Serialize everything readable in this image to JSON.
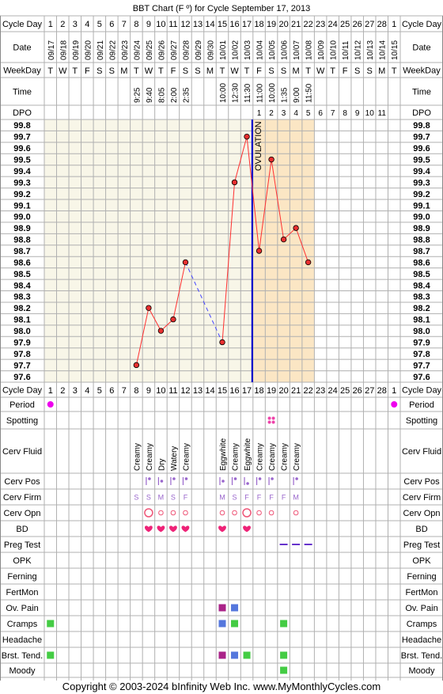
{
  "chart_data": {
    "type": "line",
    "title": "BBT Chart (F º) for Cycle September 17, 2013",
    "copyright": "Copyright © 2003-2024 bInfinity Web Inc.     www.MyMonthlyCycles.com",
    "headers": {
      "cycle_day": "Cycle Day",
      "date": "Date",
      "weekday": "WeekDay",
      "time": "Time",
      "dpo": "DPO"
    },
    "cycle_days": [
      "1",
      "2",
      "3",
      "4",
      "5",
      "6",
      "7",
      "8",
      "9",
      "10",
      "11",
      "12",
      "13",
      "14",
      "15",
      "16",
      "17",
      "18",
      "19",
      "20",
      "21",
      "22",
      "23",
      "24",
      "25",
      "26",
      "27",
      "28",
      "1"
    ],
    "dates": [
      "09/17",
      "09/18",
      "09/19",
      "09/20",
      "09/21",
      "09/22",
      "09/23",
      "09/24",
      "09/25",
      "09/26",
      "09/27",
      "09/28",
      "09/29",
      "09/30",
      "10/01",
      "10/02",
      "10/03",
      "10/04",
      "10/05",
      "10/06",
      "10/07",
      "10/08",
      "10/09",
      "10/10",
      "10/11",
      "10/12",
      "10/13",
      "10/14",
      "10/15"
    ],
    "weekdays": [
      "T",
      "W",
      "T",
      "F",
      "S",
      "S",
      "M",
      "T",
      "W",
      "T",
      "F",
      "S",
      "S",
      "M",
      "T",
      "W",
      "T",
      "F",
      "S",
      "S",
      "M",
      "T",
      "W",
      "T",
      "F",
      "S",
      "S",
      "M",
      "T"
    ],
    "times": [
      "",
      "",
      "",
      "",
      "",
      "",
      "",
      "9:25",
      "9:40",
      "8:05",
      "2:00",
      "2:35",
      "",
      "",
      "10:00",
      "12:30",
      "11:30",
      "11:00",
      "10:00",
      "1:35",
      "9:00",
      "11:50",
      "",
      "",
      "",
      "",
      "",
      "",
      ""
    ],
    "dpo": [
      "",
      "",
      "",
      "",
      "",
      "",
      "",
      "",
      "",
      "",
      "",
      "",
      "",
      "",
      "",
      "",
      "",
      "1",
      "2",
      "3",
      "4",
      "5",
      "6",
      "7",
      "8",
      "9",
      "10",
      "11",
      ""
    ],
    "y_ticks": [
      "99.8",
      "99.7",
      "99.6",
      "99.5",
      "99.4",
      "99.3",
      "99.2",
      "99.1",
      "99.0",
      "98.9",
      "98.8",
      "98.7",
      "98.6",
      "98.5",
      "98.4",
      "98.3",
      "98.2",
      "98.1",
      "98.0",
      "97.9",
      "97.8",
      "97.7",
      "97.6"
    ],
    "ylim": [
      97.6,
      99.8
    ],
    "temperatures": [
      null,
      null,
      null,
      null,
      null,
      null,
      null,
      97.7,
      98.2,
      98.0,
      98.1,
      98.6,
      null,
      null,
      97.9,
      99.3,
      99.7,
      98.7,
      99.5,
      98.8,
      98.9,
      98.6,
      null,
      null,
      null,
      null,
      null,
      null,
      null
    ],
    "dashed_gap": [
      12,
      15
    ],
    "coverline": null,
    "ovulation_day_index": 16,
    "ovulation_label": "OVULATION",
    "colors": {
      "pre_ovulation_bg": "#f8f6e8",
      "post_ovulation_bg": "#fbe6c4",
      "temp_line": "#ff3030",
      "point_fill": "#e83030",
      "ovulation_line": "#0000cc",
      "grid": "#b0b0b0",
      "heart": "#ee2277",
      "period": "#ee00ee",
      "magenta_box": "#aa2288",
      "blue_box": "#5577dd",
      "green_box": "#44cc44",
      "purple": "#9966cc",
      "preg_line": "#6633cc"
    },
    "rows": [
      {
        "label": "Period",
        "type": "dot",
        "cells": {
          "0": "period",
          "28": "period"
        }
      },
      {
        "label": "Spotting",
        "type": "dots4",
        "cells": {
          "18": "spot"
        }
      },
      {
        "label": "Cerv Fluid",
        "type": "vtext",
        "cells": {
          "7": "Creamy",
          "8": "Creamy",
          "9": "Dry",
          "10": "Watery",
          "11": "Creamy",
          "14": "Eggwhite",
          "15": "Creamy",
          "16": "Eggwhite",
          "17": "Creamy",
          "18": "Creamy",
          "19": "Creamy",
          "20": "Creamy"
        }
      },
      {
        "label": "Cerv Pos",
        "type": "pos",
        "cells": {
          "8": "high",
          "9": "mid",
          "10": "high",
          "11": "high",
          "14": "mid",
          "15": "high",
          "16": "low",
          "17": "high",
          "18": "high",
          "20": "high"
        }
      },
      {
        "label": "Cerv Firm",
        "type": "text",
        "cells": {
          "7": "S",
          "8": "S",
          "9": "M",
          "10": "S",
          "11": "F",
          "14": "M",
          "15": "S",
          "16": "F",
          "17": "F",
          "18": "F",
          "19": "F",
          "20": "M"
        }
      },
      {
        "label": "Cerv Opn",
        "type": "circle",
        "cells": {
          "8": "big",
          "9": "small",
          "10": "small",
          "11": "small",
          "14": "small",
          "15": "small",
          "16": "big",
          "17": "small",
          "18": "small",
          "20": "small"
        }
      },
      {
        "label": "BD",
        "type": "heart",
        "cells": {
          "8": "bd",
          "9": "bd",
          "10": "bd",
          "11": "bd",
          "14": "bd",
          "16": "bd"
        }
      },
      {
        "label": "Preg Test",
        "type": "dash",
        "cells": {
          "19": "neg",
          "20": "neg",
          "21": "neg"
        }
      },
      {
        "label": "OPK",
        "type": "none",
        "cells": {}
      },
      {
        "label": "Ferning",
        "type": "none",
        "cells": {}
      },
      {
        "label": "FertMon",
        "type": "none",
        "cells": {}
      },
      {
        "label": "Ov. Pain",
        "type": "box",
        "cells": {
          "14": "magenta",
          "15": "blue"
        }
      },
      {
        "label": "Cramps",
        "type": "box",
        "cells": {
          "0": "green",
          "14": "blue",
          "15": "green",
          "19": "green"
        }
      },
      {
        "label": "Headache",
        "type": "none",
        "cells": {}
      },
      {
        "label": "Brst. Tend.",
        "type": "box",
        "cells": {
          "0": "green",
          "14": "magenta",
          "15": "blue",
          "16": "green",
          "19": "green"
        }
      },
      {
        "label": "Moody",
        "type": "box",
        "cells": {
          "19": "green"
        }
      }
    ]
  }
}
